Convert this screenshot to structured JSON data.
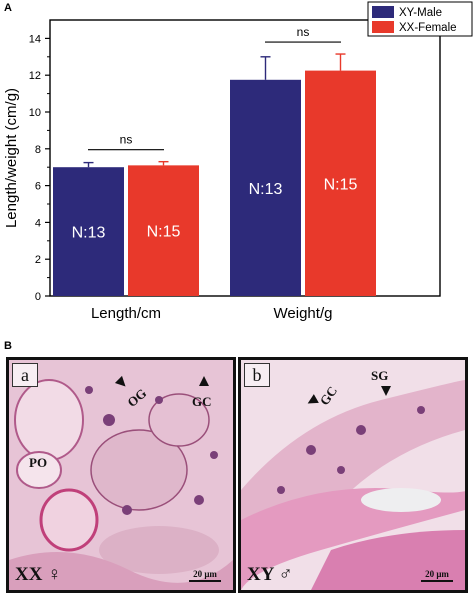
{
  "panel_a": {
    "letter": "A"
  },
  "panel_b": {
    "letter": "B",
    "image_a": {
      "letter": "a",
      "labels": [
        "OG",
        "GC",
        "PO"
      ],
      "genotype": "XX ♀",
      "scale": "20 μm"
    },
    "image_b": {
      "letter": "b",
      "labels": [
        "GC",
        "SG"
      ],
      "genotype": "XY ♂",
      "scale": "20 μm"
    }
  },
  "chart_data": {
    "type": "bar",
    "categories": [
      "Length/cm",
      "Weight/g"
    ],
    "series": [
      {
        "name": "XY-Male",
        "color": "#2d2a7a",
        "values": [
          7.0,
          11.75
        ],
        "errors": [
          0.25,
          1.25
        ],
        "labels": [
          "N:13",
          "N:13"
        ]
      },
      {
        "name": "XX-Female",
        "color": "#e8392b",
        "values": [
          7.1,
          12.25
        ],
        "errors": [
          0.2,
          0.9
        ],
        "labels": [
          "N:15",
          "N:15"
        ]
      }
    ],
    "ylabel": "Length/weight (cm/g)",
    "ylim": [
      0,
      15
    ],
    "yticks": [
      0,
      2,
      4,
      6,
      8,
      10,
      12,
      14
    ],
    "significance": [
      "ns",
      "ns"
    ],
    "legend_position": "top-right",
    "grid": false
  }
}
